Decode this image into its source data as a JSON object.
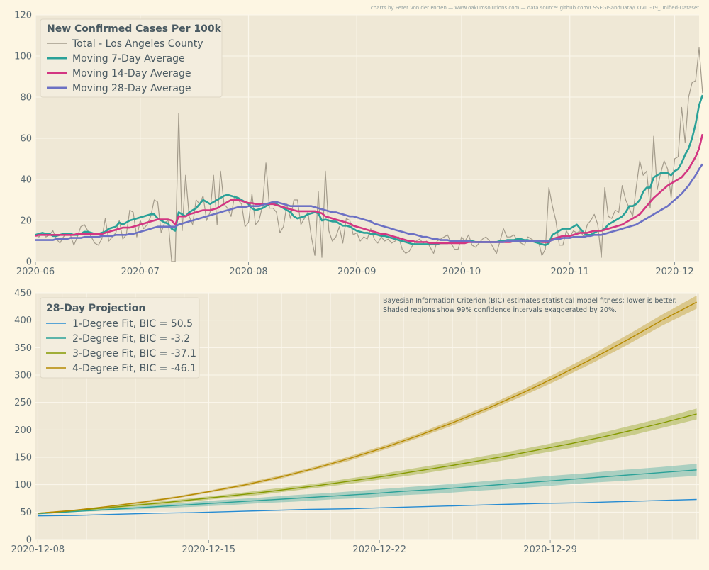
{
  "credit": "charts by Peter Von der Porten — www.oakumsolutions.com — data source: github.com/CSSEGISandData/COVID-19_Unified-Dataset",
  "colors": {
    "background": "#fdf6e3",
    "plot_bg": "#efe8d6",
    "grid": "#fbf7ec",
    "axis_text": "#5b6b73",
    "total": "#a39b8b",
    "ma7": "#2aa198",
    "ma14": "#d33682",
    "ma28": "#6c71c4",
    "fit1": "#268bd2",
    "fit2": "#2aa198",
    "fit3": "#859900",
    "fit4": "#b58900"
  },
  "chart_data": [
    {
      "type": "line",
      "title": "New Confirmed Cases Per 100k",
      "xlabel": "",
      "ylabel": "",
      "start_date": "2020-06-01",
      "ylim": [
        0,
        120
      ],
      "yticks": [
        "0",
        "20",
        "40",
        "60",
        "80",
        "100",
        "120"
      ],
      "xtick_labels": [
        "2020-06",
        "2020-07",
        "2020-08",
        "2020-09",
        "2020-10",
        "2020-11",
        "2020-12"
      ],
      "xtick_days": [
        0,
        30,
        61,
        92,
        122,
        153,
        183
      ],
      "xlim_days": [
        0,
        190
      ],
      "grid": true,
      "legend_position": "upper-left",
      "series": [
        {
          "name": "Total - Los Angeles County",
          "key": "total",
          "color": "#a39b8b"
        },
        {
          "name": "Moving 7-Day Average",
          "key": "ma7",
          "color": "#2aa198"
        },
        {
          "name": "Moving 14-Day Average",
          "key": "ma14",
          "color": "#d33682"
        },
        {
          "name": "Moving 28-Day Average",
          "key": "ma28",
          "color": "#6c71c4"
        }
      ],
      "daily_values": [
        13,
        12,
        14,
        12,
        13,
        15,
        11,
        9,
        12,
        14,
        13,
        8,
        12,
        17,
        18,
        15,
        12,
        9,
        8,
        11,
        21,
        10,
        12,
        14,
        20,
        11,
        13,
        25,
        24,
        12,
        20,
        16,
        18,
        22,
        30,
        29,
        14,
        19,
        20,
        0,
        0,
        72,
        15,
        42,
        22,
        18,
        30,
        28,
        32,
        20,
        24,
        42,
        18,
        44,
        28,
        26,
        22,
        32,
        30,
        28,
        17,
        19,
        33,
        18,
        20,
        27,
        48,
        26,
        26,
        24,
        14,
        17,
        28,
        21,
        30,
        30,
        18,
        21,
        24,
        12,
        3,
        34,
        2,
        44,
        15,
        10,
        12,
        17,
        9,
        21,
        20,
        13,
        14,
        10,
        12,
        11,
        16,
        11,
        9,
        12,
        10,
        11,
        9,
        10,
        12,
        6,
        4,
        5,
        8,
        10,
        11,
        9,
        10,
        7,
        4,
        10,
        11,
        12,
        13,
        9,
        6,
        6,
        12,
        10,
        13,
        8,
        7,
        9,
        11,
        12,
        10,
        7,
        4,
        10,
        16,
        12,
        12,
        13,
        10,
        9,
        8,
        12,
        11,
        10,
        10,
        3,
        6,
        36,
        27,
        20,
        8,
        8,
        15,
        12,
        15,
        14,
        15,
        12,
        18,
        20,
        23,
        18,
        2,
        36,
        22,
        21,
        25,
        24,
        37,
        30,
        26,
        22,
        36,
        49,
        42,
        44,
        26,
        61,
        35,
        43,
        49,
        45,
        31,
        50,
        51,
        75,
        58,
        80,
        87,
        88,
        104,
        82
      ],
      "ma7_values": [
        13,
        13.5,
        14,
        13.5,
        13.5,
        12.5,
        12.5,
        13,
        13.5,
        13.5,
        13.5,
        13,
        13,
        13.5,
        14.5,
        14.5,
        14,
        13.5,
        13.5,
        14,
        14.5,
        16,
        16.5,
        17,
        19,
        18,
        19,
        20,
        20.5,
        21,
        21.5,
        22,
        22.5,
        23,
        23,
        21,
        20,
        19,
        18.5,
        16,
        15,
        24,
        23,
        22,
        24,
        25,
        26,
        28,
        30,
        29,
        28,
        29,
        30,
        31,
        32,
        32.5,
        32,
        31.5,
        31,
        30,
        29,
        28,
        26,
        25,
        25.5,
        26,
        27,
        28,
        28.5,
        28,
        27,
        26,
        25,
        24,
        22,
        21,
        21.5,
        22,
        23,
        23.5,
        24,
        23.5,
        20,
        20.5,
        20,
        19.5,
        19.5,
        18.5,
        17.5,
        17.5,
        17,
        16,
        15,
        14.5,
        14,
        14,
        13.5,
        13.5,
        13,
        12.5,
        12.5,
        12,
        11.5,
        11,
        10.5,
        10,
        9.5,
        9,
        8.5,
        8.5,
        8.5,
        8.5,
        8.5,
        8.5,
        8.5,
        8.5,
        9,
        9,
        9,
        9.5,
        9.5,
        9.5,
        9.5,
        9.5,
        10,
        10,
        9.5,
        9.5,
        9.5,
        9.5,
        9.5,
        9.5,
        9.5,
        10,
        10,
        10.5,
        10.5,
        10.5,
        11,
        11,
        10.5,
        10.5,
        10,
        9.5,
        9,
        8.5,
        8,
        9,
        13,
        14,
        15,
        16,
        16,
        16,
        17,
        18,
        16,
        14,
        13,
        13,
        14,
        15,
        15,
        16,
        18,
        19,
        20,
        21,
        22,
        24,
        27,
        27,
        28,
        30,
        34,
        36,
        36,
        41,
        42,
        43,
        43,
        43,
        42,
        44,
        45,
        48,
        52,
        55,
        60,
        67,
        76,
        81
      ],
      "ma14_values": [
        12.5,
        13,
        13,
        13,
        13,
        13,
        13,
        13,
        13,
        13,
        13,
        13,
        13.5,
        13.5,
        13.5,
        13.5,
        13.5,
        13.5,
        13.5,
        13.5,
        14,
        14.5,
        15,
        15.5,
        16,
        16.5,
        16.5,
        16.5,
        17,
        17.5,
        18,
        18.5,
        19,
        19.5,
        20,
        20.5,
        20.5,
        20.5,
        20.5,
        20,
        18,
        22,
        22,
        22,
        23,
        23.5,
        24,
        24.5,
        25,
        25,
        25,
        25.5,
        26,
        27,
        28,
        29,
        30,
        30,
        30,
        29.5,
        29,
        28.5,
        28.5,
        28,
        28,
        28,
        28,
        28,
        28,
        27.5,
        27,
        26.5,
        26,
        25.5,
        25,
        24.5,
        24.5,
        24.5,
        24.5,
        24.5,
        24.5,
        24,
        23.5,
        22,
        21.5,
        21,
        20.5,
        20,
        19.5,
        19,
        18.5,
        17.5,
        17,
        16.5,
        16,
        15.5,
        15,
        14.5,
        14,
        13.5,
        13.5,
        13,
        12.5,
        12,
        11.5,
        11,
        10.5,
        10,
        10,
        9.5,
        9.5,
        9.5,
        9.5,
        9,
        9,
        9,
        9,
        9,
        9,
        9,
        9,
        9,
        9,
        9,
        9.5,
        9.5,
        9.5,
        9.5,
        9.5,
        9.5,
        9.5,
        9.5,
        9.5,
        9.5,
        9.5,
        9.5,
        9.5,
        10,
        10,
        10,
        10,
        10,
        10,
        10,
        10,
        9.5,
        9.5,
        9.5,
        11,
        11.5,
        12,
        12.5,
        12.5,
        12.5,
        13,
        13.5,
        14,
        14,
        14,
        14.5,
        15,
        15,
        15,
        15.5,
        16,
        16.5,
        17,
        17.5,
        18,
        19,
        20,
        21,
        22,
        23,
        25,
        27,
        29,
        31,
        32.5,
        34,
        35.5,
        37,
        38,
        39,
        40,
        41,
        43,
        45,
        48,
        51,
        55,
        62
      ],
      "ma28_values": [
        10.5,
        10.5,
        10.5,
        10.5,
        10.5,
        10.5,
        11,
        11,
        11,
        11,
        11.5,
        11.5,
        11.5,
        11.5,
        12,
        12,
        12,
        12,
        12,
        12.5,
        12.5,
        12.5,
        12.5,
        13,
        13,
        13,
        13,
        13.5,
        13.5,
        14,
        14.5,
        15,
        15.5,
        16,
        16.5,
        17,
        17,
        17,
        17,
        17,
        17,
        18,
        18.5,
        19,
        19.5,
        20,
        20.5,
        21,
        21.5,
        22,
        22.5,
        23,
        23.5,
        24,
        24.5,
        25,
        25.5,
        26,
        26.5,
        26.5,
        26.5,
        27,
        27,
        27,
        27,
        27.5,
        28,
        28.5,
        29,
        29,
        28.5,
        28,
        27.5,
        27,
        27,
        27,
        27,
        27,
        27,
        27,
        26.5,
        26,
        25.5,
        25,
        24.5,
        24,
        24,
        23.5,
        23,
        22.5,
        22,
        22,
        21.5,
        21,
        20.5,
        20,
        19.5,
        18.5,
        18,
        17.5,
        17,
        16.5,
        16,
        15.5,
        15,
        14.5,
        14,
        13.5,
        13.5,
        13,
        12.5,
        12,
        12,
        11.5,
        11,
        11,
        10.5,
        10.5,
        10.5,
        10,
        10,
        10,
        10,
        10,
        10,
        9.5,
        9.5,
        9.5,
        9.5,
        9.5,
        9.5,
        9.5,
        9.5,
        9.5,
        9.5,
        10,
        10,
        10,
        10,
        10,
        10,
        10,
        10,
        10,
        10,
        10,
        10,
        10,
        10.5,
        11,
        11,
        11.5,
        11.5,
        11.5,
        12,
        12,
        12,
        12,
        12.5,
        12.5,
        13,
        13,
        13,
        13.5,
        14,
        14.5,
        15,
        15.5,
        16,
        16.5,
        17,
        17.5,
        18,
        19,
        20,
        21,
        22,
        23,
        24,
        25,
        26,
        27,
        28.5,
        30,
        31.5,
        33,
        35,
        37,
        39.5,
        42,
        45,
        47.5
      ]
    },
    {
      "type": "line",
      "title": "28-Day Projection",
      "xlabel": "",
      "ylabel": "",
      "start_date": "2020-12-08",
      "ylim": [
        0,
        450
      ],
      "yticks": [
        "0",
        "50",
        "100",
        "150",
        "200",
        "250",
        "300",
        "350",
        "400",
        "450"
      ],
      "xtick_labels": [
        "2020-12-08",
        "2020-12-15",
        "2020-12-22",
        "2020-12-29"
      ],
      "xtick_days": [
        0,
        7,
        14,
        21
      ],
      "xlim_days": [
        -0.1,
        27.1
      ],
      "grid": true,
      "legend_position": "upper-left",
      "annotation": [
        "Bayesian Information Criterion (BIC) estimates statistical model fitness; lower is better.",
        "Shaded regions show 99% confidence intervals exaggerated by 20%."
      ],
      "series": [
        {
          "name": "1-Degree Fit, BIC = 50.5",
          "key": "fit1",
          "color": "#268bd2",
          "values": [
            43,
            44,
            46,
            48,
            49,
            51,
            53,
            55,
            56,
            58,
            60,
            62,
            64,
            66,
            67,
            69,
            71,
            73
          ]
        },
        {
          "name": "2-Degree Fit, BIC = -3.2",
          "key": "fit2",
          "color": "#2aa198",
          "values": [
            47,
            51,
            55,
            59,
            63,
            67,
            71,
            75,
            79,
            83,
            88,
            92,
            97,
            102,
            107,
            112,
            117,
            122,
            127
          ],
          "band_halfwidth": [
            1,
            1,
            2,
            3,
            4,
            5,
            5,
            6,
            6,
            7,
            7,
            8,
            8,
            9,
            9,
            9,
            10,
            10,
            11
          ]
        },
        {
          "name": "3-Degree Fit, BIC = -37.1",
          "key": "fit3",
          "color": "#859900",
          "values": [
            48,
            52,
            57,
            62,
            67,
            73,
            79,
            85,
            92,
            99,
            107,
            115,
            124,
            133,
            143,
            153,
            164,
            175,
            187,
            200,
            214,
            229
          ],
          "band_halfwidth": [
            1,
            1,
            2,
            2,
            3,
            3,
            3,
            4,
            4,
            4,
            5,
            5,
            6,
            6,
            7,
            7,
            7,
            8,
            8,
            9,
            9,
            10
          ]
        },
        {
          "name": "4-Degree Fit, BIC = -46.1",
          "key": "fit4",
          "color": "#b58900",
          "values": [
            48,
            53,
            60,
            68,
            77,
            88,
            100,
            114,
            130,
            148,
            168,
            190,
            214,
            240,
            268,
            298,
            330,
            364,
            400,
            433
          ],
          "band_halfwidth": [
            1,
            1,
            1,
            2,
            2,
            2,
            3,
            3,
            3,
            4,
            4,
            4,
            5,
            5,
            6,
            7,
            8,
            9,
            10,
            12
          ]
        }
      ]
    }
  ]
}
